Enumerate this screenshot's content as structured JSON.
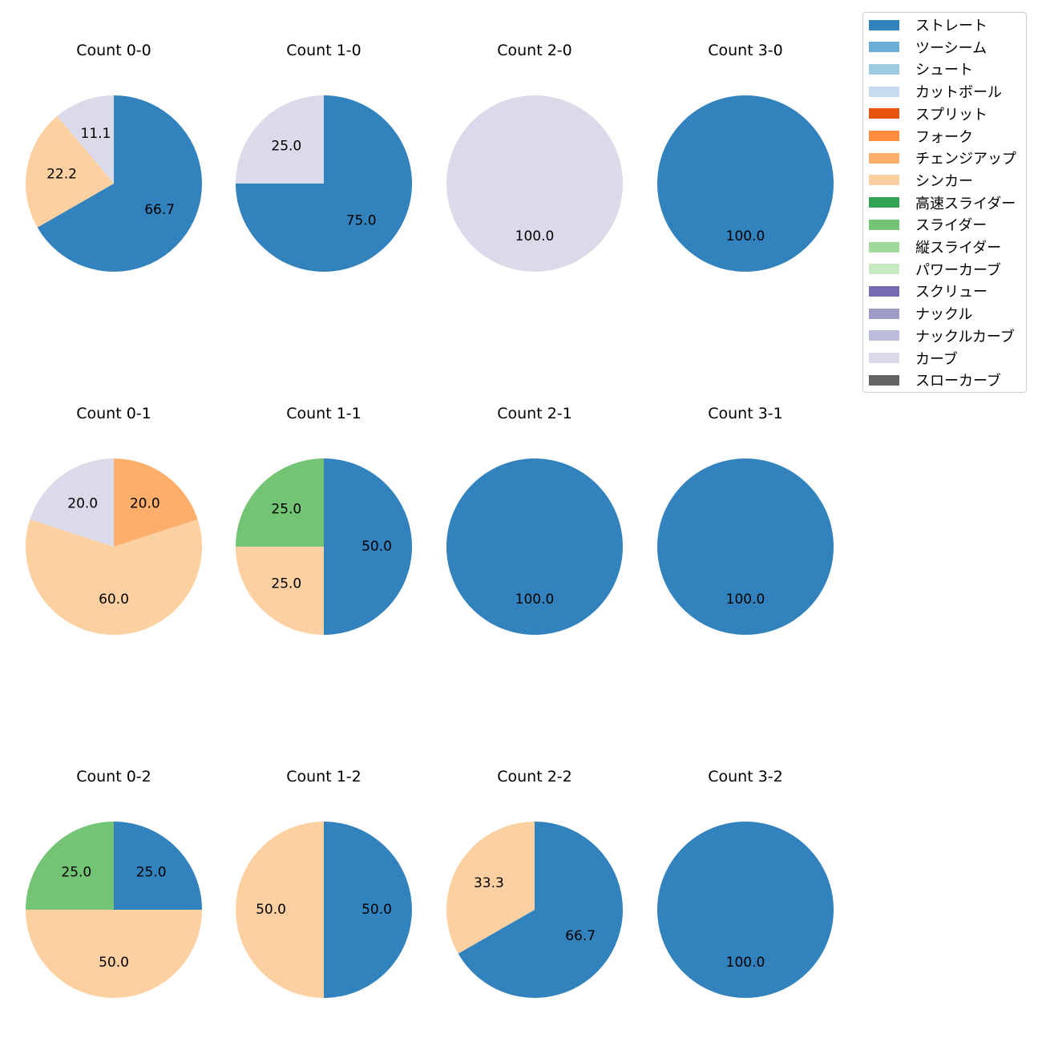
{
  "chart_data": {
    "type": "pie",
    "title": "",
    "legend": {
      "placement": "top-right",
      "entries": [
        {
          "name": "ストレート",
          "color": "#3182bd"
        },
        {
          "name": "ツーシーム",
          "color": "#6baed6"
        },
        {
          "name": "シュート",
          "color": "#9ecae1"
        },
        {
          "name": "カットボール",
          "color": "#c6dbef"
        },
        {
          "name": "スプリット",
          "color": "#e6550d"
        },
        {
          "name": "フォーク",
          "color": "#fd8d3c"
        },
        {
          "name": "チェンジアップ",
          "color": "#fdae6b"
        },
        {
          "name": "シンカー",
          "color": "#fdd0a2"
        },
        {
          "name": "高速スライダー",
          "color": "#31a354"
        },
        {
          "name": "スライダー",
          "color": "#74c476"
        },
        {
          "name": "縦スライダー",
          "color": "#a1d99b"
        },
        {
          "name": "パワーカーブ",
          "color": "#c7e9c0"
        },
        {
          "name": "スクリュー",
          "color": "#756bb1"
        },
        {
          "name": "ナックル",
          "color": "#9e9ac8"
        },
        {
          "name": "ナックルカーブ",
          "color": "#bcbddc"
        },
        {
          "name": "カーブ",
          "color": "#dadaeb"
        },
        {
          "name": "スローカーブ",
          "color": "#636363"
        }
      ]
    },
    "pies": [
      {
        "title": "Count 0-0",
        "slices": [
          {
            "category": "ストレート",
            "value": 66.7,
            "label": "66.7"
          },
          {
            "category": "シンカー",
            "value": 22.2,
            "label": "22.2"
          },
          {
            "category": "カーブ",
            "value": 11.1,
            "label": "11.1"
          }
        ]
      },
      {
        "title": "Count 1-0",
        "slices": [
          {
            "category": "ストレート",
            "value": 75.0,
            "label": "75.0"
          },
          {
            "category": "カーブ",
            "value": 25.0,
            "label": "25.0"
          }
        ]
      },
      {
        "title": "Count 2-0",
        "slices": [
          {
            "category": "カーブ",
            "value": 100.0,
            "label": "100.0"
          }
        ]
      },
      {
        "title": "Count 3-0",
        "slices": [
          {
            "category": "ストレート",
            "value": 100.0,
            "label": "100.0"
          }
        ]
      },
      {
        "title": "Count 0-1",
        "slices": [
          {
            "category": "チェンジアップ",
            "value": 20.0,
            "label": "20.0"
          },
          {
            "category": "シンカー",
            "value": 60.0,
            "label": "60.0"
          },
          {
            "category": "カーブ",
            "value": 20.0,
            "label": "20.0"
          }
        ]
      },
      {
        "title": "Count 1-1",
        "slices": [
          {
            "category": "ストレート",
            "value": 50.0,
            "label": "50.0"
          },
          {
            "category": "シンカー",
            "value": 25.0,
            "label": "25.0"
          },
          {
            "category": "スライダー",
            "value": 25.0,
            "label": "25.0"
          }
        ]
      },
      {
        "title": "Count 2-1",
        "slices": [
          {
            "category": "ストレート",
            "value": 100.0,
            "label": "100.0"
          }
        ]
      },
      {
        "title": "Count 3-1",
        "slices": [
          {
            "category": "ストレート",
            "value": 100.0,
            "label": "100.0"
          }
        ]
      },
      {
        "title": "Count 0-2",
        "slices": [
          {
            "category": "ストレート",
            "value": 25.0,
            "label": "25.0"
          },
          {
            "category": "シンカー",
            "value": 50.0,
            "label": "50.0"
          },
          {
            "category": "スライダー",
            "value": 25.0,
            "label": "25.0"
          }
        ]
      },
      {
        "title": "Count 1-2",
        "slices": [
          {
            "category": "ストレート",
            "value": 50.0,
            "label": "50.0"
          },
          {
            "category": "シンカー",
            "value": 50.0,
            "label": "50.0"
          }
        ]
      },
      {
        "title": "Count 2-2",
        "slices": [
          {
            "category": "ストレート",
            "value": 66.7,
            "label": "66.7"
          },
          {
            "category": "シンカー",
            "value": 33.3,
            "label": "33.3"
          }
        ]
      },
      {
        "title": "Count 3-2",
        "slices": [
          {
            "category": "ストレート",
            "value": 100.0,
            "label": "100.0"
          }
        ]
      }
    ]
  }
}
